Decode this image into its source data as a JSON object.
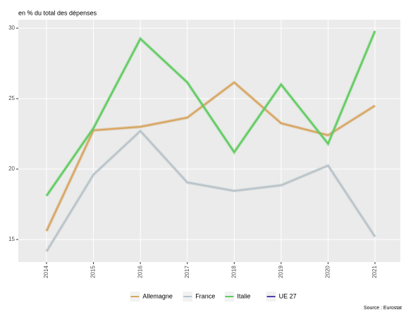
{
  "chart_data": {
    "type": "line",
    "title": "en % du total des dépenses",
    "source": "Source : Eurostat",
    "x": [
      "2014",
      "2015",
      "2016",
      "2017",
      "2018",
      "2019",
      "2020",
      "2021"
    ],
    "series": [
      {
        "name": "Allemagne",
        "color": "#d6a662",
        "values": [
          15.6,
          22.75,
          23.0,
          23.65,
          26.15,
          23.25,
          22.4,
          24.5
        ]
      },
      {
        "name": "France",
        "color": "#b8c3c9",
        "values": [
          14.15,
          19.6,
          22.7,
          19.05,
          18.45,
          18.85,
          20.25,
          15.2
        ]
      },
      {
        "name": "Italie",
        "color": "#5fcb5f",
        "values": [
          18.1,
          22.9,
          29.25,
          26.15,
          21.2,
          26.0,
          21.8,
          29.8
        ]
      },
      {
        "name": "UE 27",
        "color": "#4b3fb0",
        "values": [
          null,
          null,
          null,
          null,
          null,
          null,
          null,
          null
        ]
      }
    ],
    "ylim": [
      13.4,
      30.6
    ],
    "yticks": [
      15,
      20,
      25,
      30
    ],
    "grid": true
  }
}
